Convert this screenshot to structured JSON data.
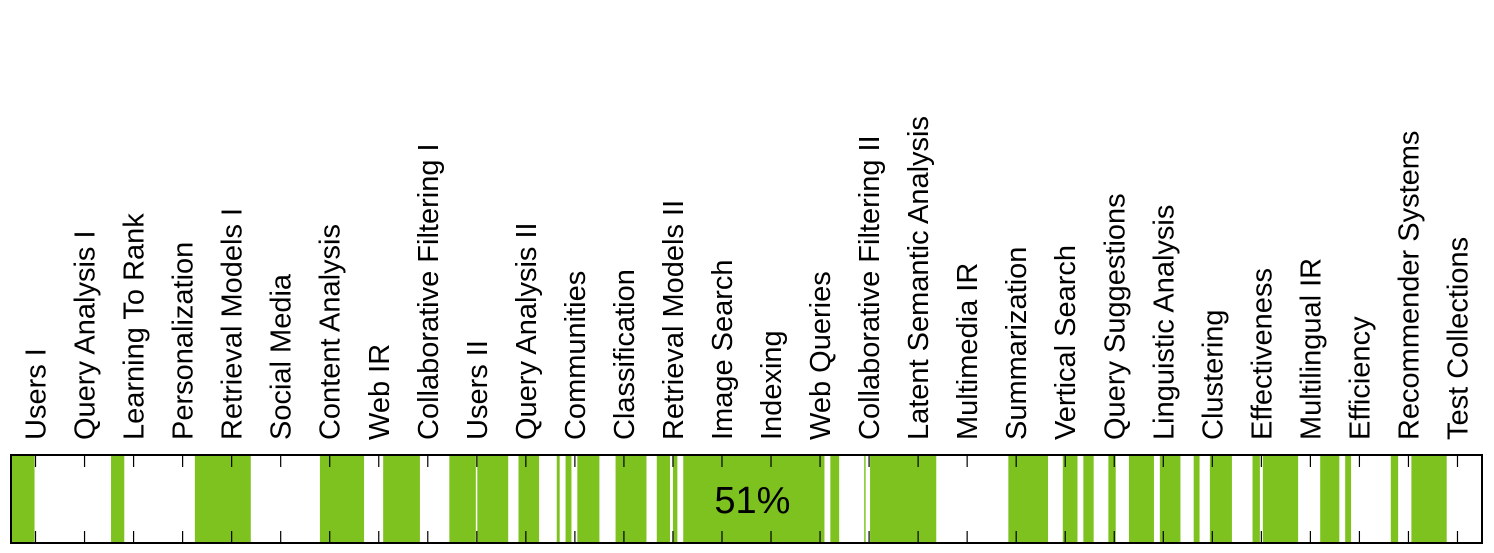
{
  "chart_data": {
    "type": "bar",
    "categories": [
      "Users I",
      "Query Analysis I",
      "Learning To Rank",
      "Personalization",
      "Retrieval Models I",
      "Social Media",
      "Content Analysis",
      "Web IR",
      "Collaborative Filtering I",
      "Users II",
      "Query Analysis II",
      "Communities",
      "Classification",
      "Retrieval Models II",
      "Image Search",
      "Indexing",
      "Web Queries",
      "Collaborative Filtering II",
      "Latent Semantic Analysis",
      "Multimedia IR",
      "Summarization",
      "Vertical Search",
      "Query Suggestions",
      "Linguistic Analysis",
      "Clustering",
      "Effectiveness",
      "Multilingual IR",
      "Efficiency",
      "Recommender Systems",
      "Test Collections"
    ],
    "segments": [
      [
        0.0,
        0.016
      ],
      [
        0.068,
        0.077
      ],
      [
        0.125,
        0.163
      ],
      [
        0.21,
        0.24
      ],
      [
        0.253,
        0.278
      ],
      [
        0.298,
        0.316
      ],
      [
        0.317,
        0.338
      ],
      [
        0.345,
        0.359
      ],
      [
        0.371,
        0.373
      ],
      [
        0.377,
        0.381
      ],
      [
        0.385,
        0.4
      ],
      [
        0.411,
        0.432
      ],
      [
        0.439,
        0.448
      ],
      [
        0.45,
        0.453
      ],
      [
        0.457,
        0.553
      ],
      [
        0.557,
        0.563
      ],
      [
        0.58,
        0.581
      ],
      [
        0.584,
        0.629
      ],
      [
        0.678,
        0.705
      ],
      [
        0.715,
        0.725
      ],
      [
        0.729,
        0.736
      ],
      [
        0.746,
        0.751
      ],
      [
        0.76,
        0.777
      ],
      [
        0.781,
        0.795
      ],
      [
        0.804,
        0.808
      ],
      [
        0.815,
        0.83
      ],
      [
        0.844,
        0.849
      ],
      [
        0.851,
        0.875
      ],
      [
        0.89,
        0.903
      ],
      [
        0.907,
        0.911
      ],
      [
        0.938,
        0.943
      ],
      [
        0.952,
        0.976
      ]
    ],
    "value_percent": 51,
    "value_label": "51%",
    "colors": {
      "fill": "#7dc21e",
      "background": "#ffffff",
      "stroke": "#000000"
    }
  }
}
